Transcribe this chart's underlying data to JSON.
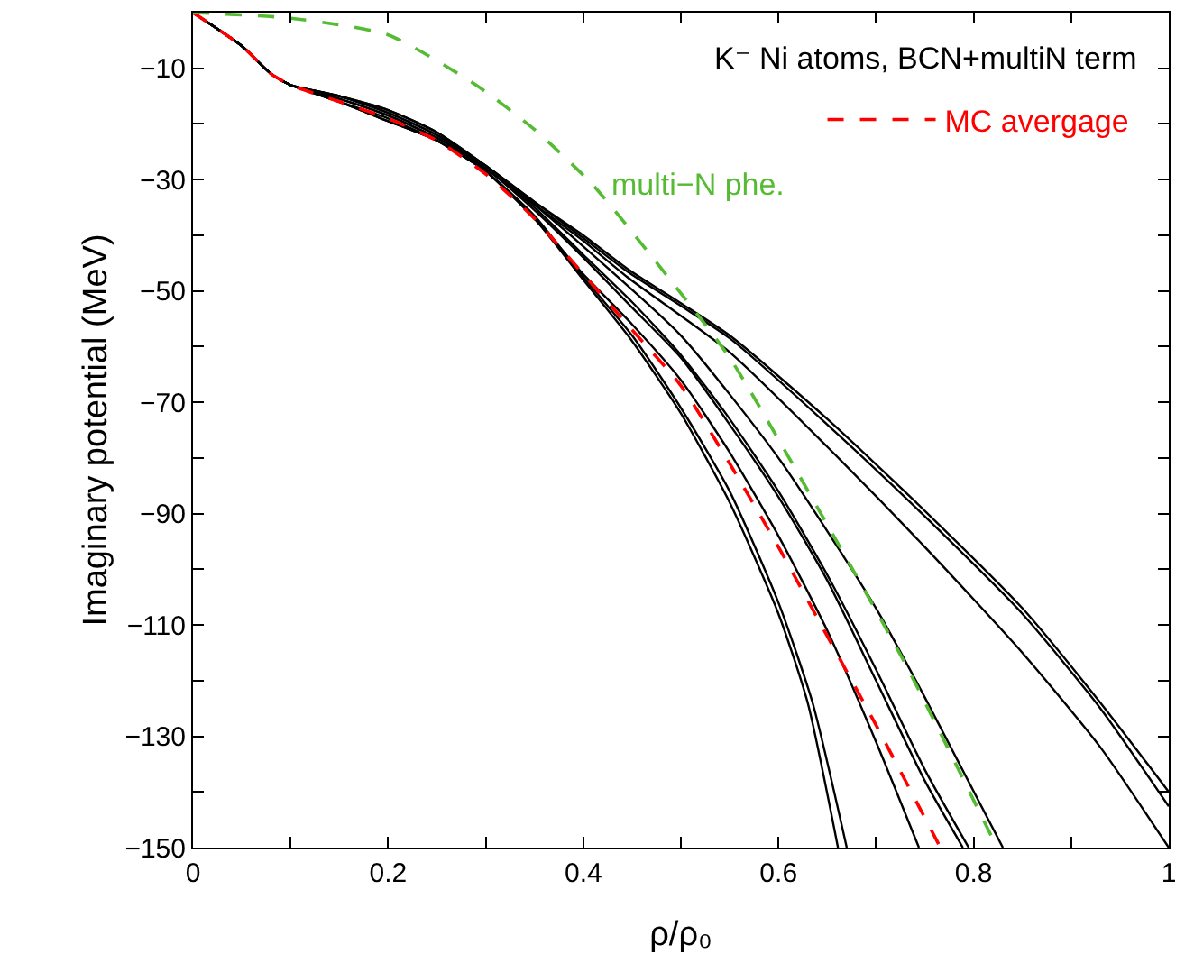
{
  "chart_data": {
    "type": "line",
    "xlabel": "ρ/ρ₀",
    "ylabel": "Imaginary potential (MeV)",
    "annotations": [
      "K⁻ Ni atoms, BCN+multiN term"
    ],
    "xlim": [
      0,
      1
    ],
    "ylim": [
      -150,
      0
    ],
    "xticks": [
      0,
      {
        "value": 0.1,
        "label": null
      },
      0.2,
      {
        "value": 0.3,
        "label": null
      },
      0.4,
      {
        "value": 0.5,
        "label": null
      },
      0.6,
      {
        "value": 0.7,
        "label": null
      },
      0.8,
      {
        "value": 0.9,
        "label": null
      },
      1
    ],
    "yticks": [
      {
        "value": -10,
        "label": "−10"
      },
      {
        "value": -20,
        "label": null
      },
      {
        "value": -30,
        "label": "−30"
      },
      {
        "value": -40,
        "label": null
      },
      {
        "value": -50,
        "label": "−50"
      },
      {
        "value": -60,
        "label": null
      },
      {
        "value": -70,
        "label": "−70"
      },
      {
        "value": -80,
        "label": null
      },
      {
        "value": -90,
        "label": "−90"
      },
      {
        "value": -100,
        "label": null
      },
      {
        "value": -110,
        "label": "−110"
      },
      {
        "value": -120,
        "label": null
      },
      {
        "value": -130,
        "label": "−130"
      },
      {
        "value": -140,
        "label": null
      },
      {
        "value": -150,
        "label": "−150"
      }
    ],
    "grid": false,
    "legend": "top right",
    "marker": "none",
    "line_style": "solid",
    "series": [
      {
        "color": "#000000",
        "x": [
          0,
          0.05,
          0.08,
          0.1,
          0.15,
          0.2,
          0.25,
          0.3,
          0.35,
          0.4,
          0.45,
          0.5,
          0.55,
          0.6,
          0.63,
          0.661
        ],
        "values": [
          0,
          -6,
          -11,
          -13,
          -16,
          -19.5,
          -23,
          -28.5,
          -37,
          -48,
          -59,
          -72,
          -88,
          -108,
          -124,
          -150
        ]
      },
      {
        "color": "#000000",
        "x": [
          0,
          0.05,
          0.08,
          0.1,
          0.15,
          0.2,
          0.25,
          0.3,
          0.35,
          0.4,
          0.45,
          0.5,
          0.55,
          0.6,
          0.635,
          0.67
        ],
        "values": [
          0,
          -6,
          -11,
          -13,
          -16,
          -19.5,
          -23,
          -28.5,
          -36.5,
          -47.5,
          -58,
          -71,
          -86,
          -106,
          -124,
          -150
        ]
      },
      {
        "color": "#000000",
        "x": [
          0,
          0.05,
          0.08,
          0.1,
          0.15,
          0.2,
          0.25,
          0.3,
          0.35,
          0.4,
          0.45,
          0.5,
          0.55,
          0.6,
          0.65,
          0.7,
          0.744
        ],
        "values": [
          0,
          -6,
          -11,
          -13,
          -16,
          -19,
          -23,
          -28.5,
          -37,
          -47,
          -56,
          -66,
          -79,
          -94,
          -111,
          -131,
          -150
        ]
      },
      {
        "color": "#000000",
        "x": [
          0,
          0.05,
          0.08,
          0.1,
          0.15,
          0.2,
          0.25,
          0.3,
          0.35,
          0.4,
          0.45,
          0.5,
          0.55,
          0.6,
          0.65,
          0.7,
          0.75,
          0.789
        ],
        "values": [
          0,
          -6,
          -11,
          -13,
          -15.5,
          -18.5,
          -22.5,
          -28,
          -35.5,
          -44,
          -53,
          -62,
          -74,
          -87,
          -102,
          -120,
          -138,
          -150
        ]
      },
      {
        "color": "#000000",
        "x": [
          0,
          0.05,
          0.08,
          0.1,
          0.15,
          0.2,
          0.25,
          0.3,
          0.35,
          0.4,
          0.45,
          0.5,
          0.55,
          0.6,
          0.65,
          0.7,
          0.75,
          0.795
        ],
        "values": [
          0,
          -6,
          -11,
          -13,
          -15.5,
          -18.5,
          -22.5,
          -28,
          -35,
          -43.5,
          -52,
          -61.5,
          -73,
          -86,
          -101,
          -118,
          -136,
          -150
        ]
      },
      {
        "color": "#000000",
        "x": [
          0,
          0.05,
          0.08,
          0.1,
          0.15,
          0.2,
          0.25,
          0.3,
          0.35,
          0.4,
          0.5,
          0.6,
          0.7,
          0.75,
          0.83
        ],
        "values": [
          0,
          -6,
          -11,
          -13,
          -15,
          -18,
          -22,
          -27.5,
          -34.5,
          -42,
          -58,
          -80,
          -107,
          -123,
          -150
        ]
      },
      {
        "color": "#000000",
        "x": [
          0,
          0.05,
          0.08,
          0.1,
          0.15,
          0.2,
          0.25,
          0.3,
          0.35,
          0.4,
          0.445,
          0.55,
          0.65,
          0.75,
          0.85,
          0.93,
          1
        ],
        "values": [
          0,
          -6,
          -11,
          -13,
          -15,
          -17.5,
          -21.5,
          -27.5,
          -34,
          -40,
          -46,
          -58,
          -73,
          -89.5,
          -107,
          -124,
          -140
        ]
      },
      {
        "color": "#000000",
        "x": [
          0,
          0.05,
          0.08,
          0.1,
          0.15,
          0.2,
          0.25,
          0.3,
          0.35,
          0.4,
          0.445,
          0.55,
          0.65,
          0.75,
          0.85,
          0.93,
          1
        ],
        "values": [
          0,
          -6,
          -11,
          -13,
          -15,
          -17.5,
          -21.5,
          -27.5,
          -34,
          -40.5,
          -46.5,
          -58.5,
          -74,
          -90.5,
          -108,
          -125,
          -142.6
        ]
      },
      {
        "color": "#000000",
        "x": [
          0,
          0.05,
          0.08,
          0.1,
          0.15,
          0.2,
          0.25,
          0.3,
          0.35,
          0.4,
          0.445,
          0.55,
          0.65,
          0.75,
          0.85,
          0.93,
          1
        ],
        "values": [
          0,
          -6,
          -11,
          -13,
          -15,
          -18,
          -22,
          -28,
          -34.5,
          -41,
          -47.5,
          -61,
          -78,
          -96,
          -115,
          -132,
          -150
        ]
      },
      {
        "name": "MC avergage",
        "color": "#ff0000",
        "line_style": "dashed",
        "x": [
          0,
          0.05,
          0.08,
          0.1,
          0.15,
          0.2,
          0.25,
          0.3,
          0.35,
          0.4,
          0.45,
          0.5,
          0.55,
          0.6,
          0.65,
          0.7,
          0.766
        ],
        "values": [
          0,
          -6,
          -11,
          -13,
          -16,
          -19,
          -23,
          -29,
          -37,
          -47,
          -57,
          -67,
          -81,
          -96,
          -112,
          -128,
          -150
        ]
      },
      {
        "name": "multi−N phe.",
        "color": "#55bb33",
        "line_style": "dashed",
        "x": [
          0,
          0.1,
          0.2,
          0.29,
          0.35,
          0.41,
          0.48,
          0.55,
          0.65,
          0.73,
          0.824
        ],
        "values": [
          0,
          -1,
          -4,
          -13,
          -21,
          -31,
          -46,
          -62,
          -92,
          -117,
          -150
        ]
      }
    ]
  }
}
